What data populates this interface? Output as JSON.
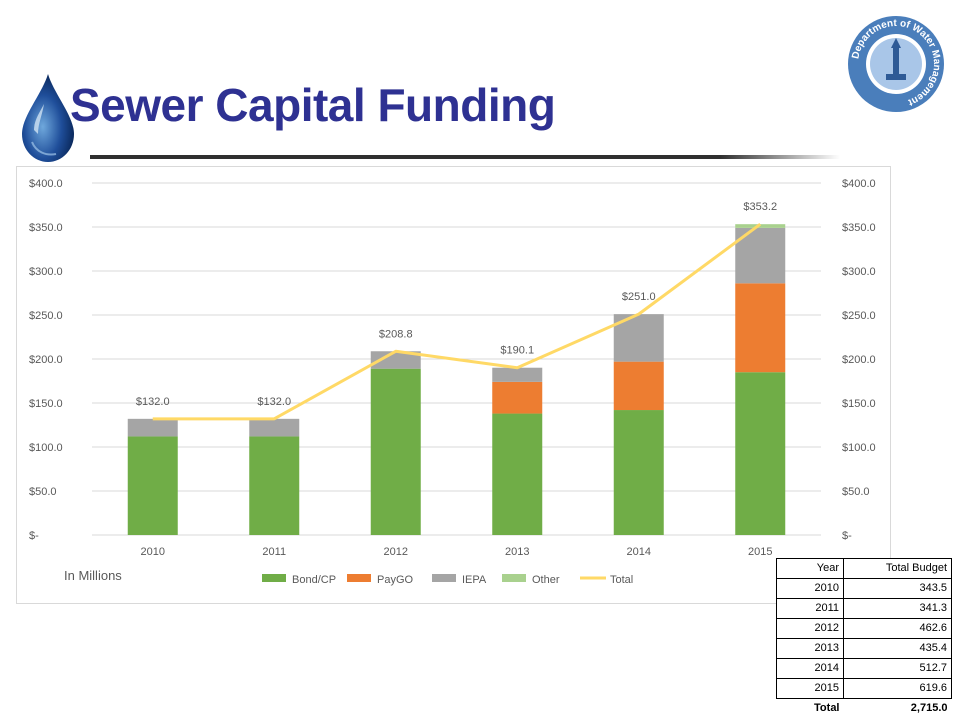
{
  "slide": {
    "title": "Sewer Capital Funding",
    "logo_text": "Department of Water Management"
  },
  "chart_data": {
    "type": "bar",
    "stacked": true,
    "categories": [
      "2010",
      "2011",
      "2012",
      "2013",
      "2014",
      "2015"
    ],
    "series": [
      {
        "name": "Bond/CP",
        "color": "#70ad47",
        "values": [
          112,
          112,
          189,
          138,
          142,
          185
        ]
      },
      {
        "name": "PayGO",
        "color": "#ed7d31",
        "values": [
          0,
          0,
          0,
          36,
          55,
          101
        ]
      },
      {
        "name": "IEPA",
        "color": "#a5a5a5",
        "values": [
          20,
          20,
          19.8,
          16.1,
          54,
          63
        ]
      },
      {
        "name": "Other",
        "color": "#a9d18e",
        "values": [
          0,
          0,
          0,
          0,
          0,
          4.2
        ]
      }
    ],
    "line": {
      "name": "Total",
      "color": "#ffd966",
      "values": [
        132.0,
        132.0,
        208.8,
        190.1,
        251.0,
        353.2
      ]
    },
    "data_labels": [
      "$132.0",
      "$132.0",
      "$208.8",
      "$190.1",
      "$251.0",
      "$353.2"
    ],
    "y_ticks": [
      "$-",
      "$50.0",
      "$100.0",
      "$150.0",
      "$200.0",
      "$250.0",
      "$300.0",
      "$350.0",
      "$400.0"
    ],
    "ylim": [
      0,
      400
    ],
    "grid": true,
    "legend_position": "bottom",
    "note": "In Millions"
  },
  "budget_table": {
    "headers": [
      "Year",
      "Total Budget"
    ],
    "rows": [
      [
        "2010",
        "343.5"
      ],
      [
        "2011",
        "341.3"
      ],
      [
        "2012",
        "462.6"
      ],
      [
        "2013",
        "435.4"
      ],
      [
        "2014",
        "512.7"
      ],
      [
        "2015",
        "619.6"
      ]
    ],
    "total_label": "Total",
    "total_value": "2,715.0"
  }
}
